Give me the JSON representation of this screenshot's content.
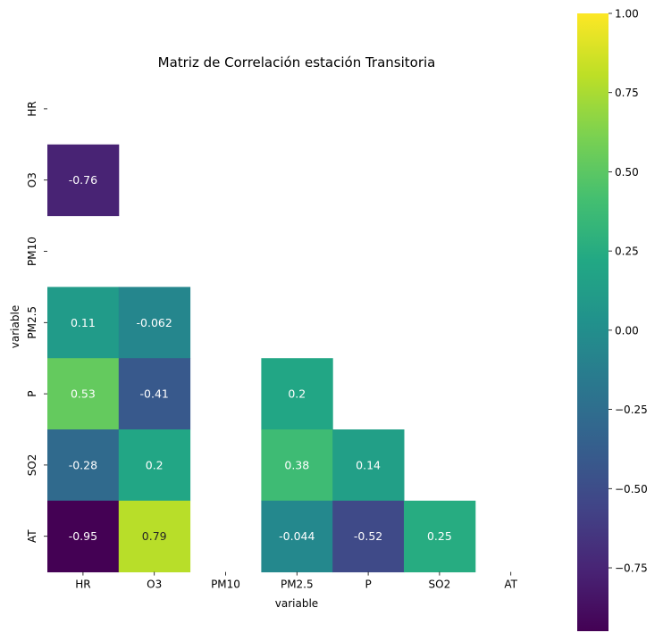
{
  "chart_data": {
    "type": "heatmap",
    "title": "Matriz de Correlación estación Transitoria",
    "xlabel": "variable",
    "ylabel": "variable",
    "x_categories": [
      "HR",
      "O3",
      "PM10",
      "PM2.5",
      "P",
      "SO2",
      "AT"
    ],
    "y_categories": [
      "HR",
      "O3",
      "PM10",
      "PM2.5",
      "P",
      "SO2",
      "AT"
    ],
    "mask": "upper triangle and diagonal; PM10 column/row empty",
    "cells": [
      {
        "row": "O3",
        "col": "HR",
        "value": -0.76,
        "label": "-0.76"
      },
      {
        "row": "PM2.5",
        "col": "HR",
        "value": 0.11,
        "label": "0.11"
      },
      {
        "row": "PM2.5",
        "col": "O3",
        "value": -0.062,
        "label": "-0.062"
      },
      {
        "row": "P",
        "col": "HR",
        "value": 0.53,
        "label": "0.53"
      },
      {
        "row": "P",
        "col": "O3",
        "value": -0.41,
        "label": "-0.41"
      },
      {
        "row": "P",
        "col": "PM2.5",
        "value": 0.2,
        "label": "0.2"
      },
      {
        "row": "SO2",
        "col": "HR",
        "value": -0.28,
        "label": "-0.28"
      },
      {
        "row": "SO2",
        "col": "O3",
        "value": 0.2,
        "label": "0.2"
      },
      {
        "row": "SO2",
        "col": "PM2.5",
        "value": 0.38,
        "label": "0.38"
      },
      {
        "row": "SO2",
        "col": "P",
        "value": 0.14,
        "label": "0.14"
      },
      {
        "row": "AT",
        "col": "HR",
        "value": -0.95,
        "label": "-0.95"
      },
      {
        "row": "AT",
        "col": "O3",
        "value": 0.79,
        "label": "0.79"
      },
      {
        "row": "AT",
        "col": "PM2.5",
        "value": -0.044,
        "label": "-0.044"
      },
      {
        "row": "AT",
        "col": "P",
        "value": -0.52,
        "label": "-0.52"
      },
      {
        "row": "AT",
        "col": "SO2",
        "value": 0.25,
        "label": "0.25"
      }
    ],
    "colormap": "viridis",
    "colorbar": {
      "vmin": -0.95,
      "vmax": 1.0,
      "ticks": [
        1.0,
        0.75,
        0.5,
        0.25,
        0.0,
        -0.25,
        -0.5,
        -0.75
      ],
      "tick_labels": [
        "1.00",
        "0.75",
        "0.50",
        "0.25",
        "0.00",
        "−0.25",
        "−0.50",
        "−0.75"
      ]
    },
    "grid": false
  }
}
